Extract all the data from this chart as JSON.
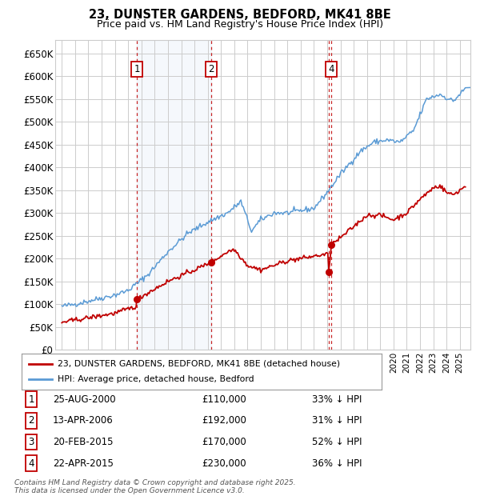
{
  "title": "23, DUNSTER GARDENS, BEDFORD, MK41 8BE",
  "subtitle": "Price paid vs. HM Land Registry's House Price Index (HPI)",
  "legend_line1": "23, DUNSTER GARDENS, BEDFORD, MK41 8BE (detached house)",
  "legend_line2": "HPI: Average price, detached house, Bedford",
  "footer": "Contains HM Land Registry data © Crown copyright and database right 2025.\nThis data is licensed under the Open Government Licence v3.0.",
  "transactions": [
    {
      "num": 1,
      "date": "25-AUG-2000",
      "price": 110000,
      "price_str": "£110,000",
      "pct": "33%",
      "dir": "↓",
      "x_year": 2000.65,
      "show_box": true
    },
    {
      "num": 2,
      "date": "13-APR-2006",
      "price": 192000,
      "price_str": "£192,000",
      "pct": "31%",
      "dir": "↓",
      "x_year": 2006.28,
      "show_box": true
    },
    {
      "num": 3,
      "date": "20-FEB-2015",
      "price": 170000,
      "price_str": "£170,000",
      "pct": "52%",
      "dir": "↓",
      "x_year": 2015.13,
      "show_box": false
    },
    {
      "num": 4,
      "date": "22-APR-2015",
      "price": 230000,
      "price_str": "£230,000",
      "pct": "36%",
      "dir": "↓",
      "x_year": 2015.31,
      "show_box": true
    }
  ],
  "hpi_color": "#5b9bd5",
  "price_color": "#c00000",
  "background_color": "#ffffff",
  "grid_color": "#cccccc",
  "transaction_box_color": "#c00000",
  "shading_color": "#ddeeff",
  "ylim": [
    0,
    680000
  ],
  "yticks": [
    0,
    50000,
    100000,
    150000,
    200000,
    250000,
    300000,
    350000,
    400000,
    450000,
    500000,
    550000,
    600000,
    650000
  ],
  "xlim_start": 1994.5,
  "xlim_end": 2025.8
}
